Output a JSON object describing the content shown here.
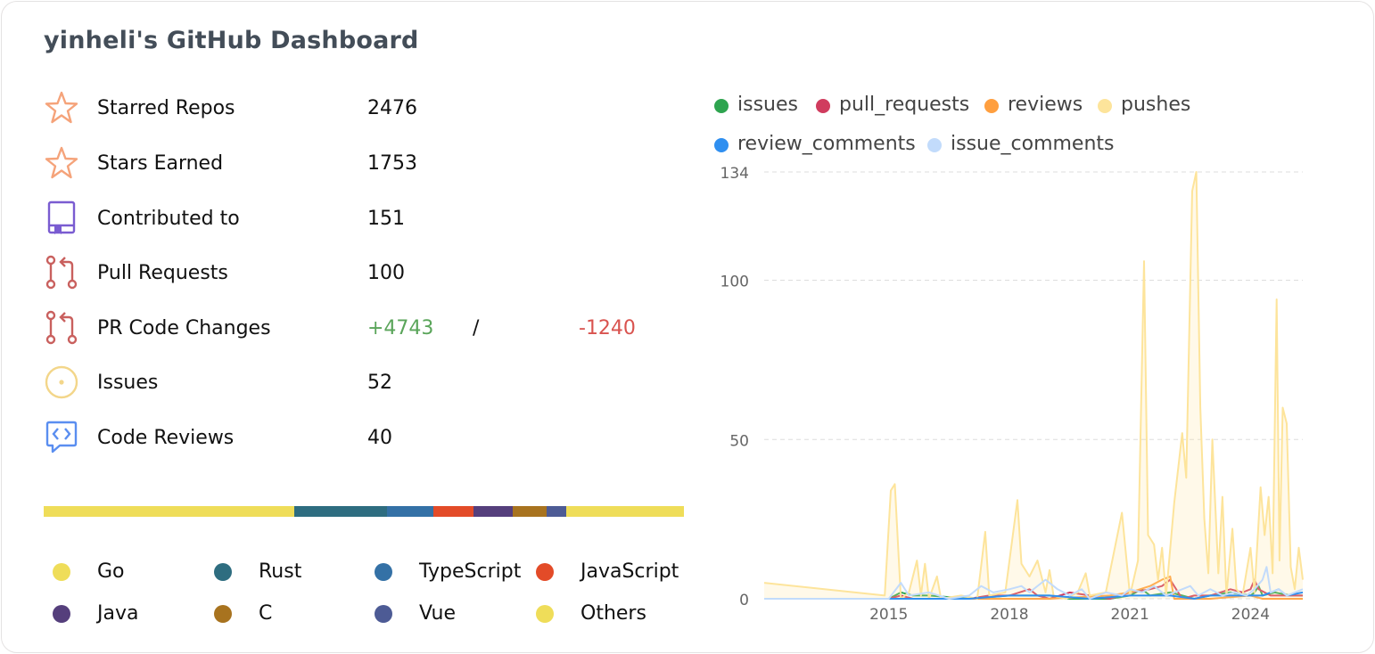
{
  "title": "yinheli's GitHub Dashboard",
  "stats": {
    "starred": {
      "label": "Starred Repos",
      "value": "2476"
    },
    "stars_earned": {
      "label": "Stars Earned",
      "value": "1753"
    },
    "contributed": {
      "label": "Contributed to",
      "value": "151"
    },
    "pull_requests": {
      "label": "Pull Requests",
      "value": "100"
    },
    "pr_changes": {
      "label": "PR Code Changes",
      "additions": "+4743",
      "separator": "/",
      "deletions": "-1240"
    },
    "issues": {
      "label": "Issues",
      "value": "52"
    },
    "code_reviews": {
      "label": "Code Reviews",
      "value": "40"
    }
  },
  "colors": {
    "star": "#f5a37a",
    "repo": "#7a5cd1",
    "pr": "#c9605e",
    "issue": "#f3d68a",
    "review": "#5a8ef0"
  },
  "languages": [
    {
      "name": "Go",
      "color": "#efdd59",
      "share": 39.2
    },
    {
      "name": "Rust",
      "color": "#2e6d80",
      "share": 14.4
    },
    {
      "name": "TypeScript",
      "color": "#3471a6",
      "share": 7.2
    },
    {
      "name": "JavaScript",
      "color": "#e34b28",
      "share": 6.3
    },
    {
      "name": "Java",
      "color": "#553f7c",
      "share": 6.1
    },
    {
      "name": "C",
      "color": "#a8731f",
      "share": 5.3
    },
    {
      "name": "Vue",
      "color": "#4d5b95",
      "share": 3.1
    },
    {
      "name": "Others",
      "color": "#efdd59",
      "share": 18.4
    }
  ],
  "chart_data": {
    "type": "area",
    "title": "",
    "xlabel": "",
    "ylabel": "",
    "ylim": [
      0,
      134
    ],
    "yticks": [
      0,
      50,
      100,
      134
    ],
    "xticks": [
      "2015",
      "2018",
      "2021",
      "2024"
    ],
    "xlim": [
      2011.9,
      2025.3
    ],
    "grid": true,
    "legend_position": "top",
    "series": [
      {
        "name": "issues",
        "color": "#2ea44f",
        "points": [
          [
            2011.9,
            0
          ],
          [
            2015.0,
            0
          ],
          [
            2015.3,
            2
          ],
          [
            2015.6,
            1
          ],
          [
            2016.0,
            1
          ],
          [
            2017.0,
            0
          ],
          [
            2018.0,
            1
          ],
          [
            2018.5,
            1
          ],
          [
            2019.0,
            1
          ],
          [
            2019.5,
            0
          ],
          [
            2020.0,
            0
          ],
          [
            2020.5,
            0
          ],
          [
            2021.0,
            1
          ],
          [
            2021.3,
            3
          ],
          [
            2021.5,
            1
          ],
          [
            2022.0,
            2
          ],
          [
            2022.3,
            1
          ],
          [
            2022.6,
            0
          ],
          [
            2023.0,
            1
          ],
          [
            2023.5,
            2
          ],
          [
            2024.0,
            1
          ],
          [
            2024.1,
            2
          ],
          [
            2024.2,
            4
          ],
          [
            2024.3,
            1
          ],
          [
            2024.6,
            2
          ],
          [
            2025.0,
            1
          ],
          [
            2025.3,
            1
          ]
        ]
      },
      {
        "name": "pull_requests",
        "color": "#d03c5e",
        "points": [
          [
            2011.9,
            0
          ],
          [
            2015.0,
            0
          ],
          [
            2015.3,
            1
          ],
          [
            2015.6,
            0
          ],
          [
            2016.0,
            0
          ],
          [
            2017.0,
            0
          ],
          [
            2017.5,
            1
          ],
          [
            2018.0,
            1
          ],
          [
            2018.5,
            3
          ],
          [
            2018.7,
            1
          ],
          [
            2019.0,
            0
          ],
          [
            2019.5,
            2
          ],
          [
            2020.0,
            1
          ],
          [
            2020.5,
            0
          ],
          [
            2021.0,
            2
          ],
          [
            2021.5,
            3
          ],
          [
            2021.8,
            4
          ],
          [
            2022.0,
            6
          ],
          [
            2022.3,
            0
          ],
          [
            2022.6,
            1
          ],
          [
            2023.0,
            1
          ],
          [
            2023.5,
            3
          ],
          [
            2023.8,
            2
          ],
          [
            2024.0,
            3
          ],
          [
            2024.1,
            6
          ],
          [
            2024.2,
            3
          ],
          [
            2024.5,
            1
          ],
          [
            2024.8,
            1
          ],
          [
            2025.3,
            1
          ]
        ]
      },
      {
        "name": "reviews",
        "color": "#ff9f3f",
        "points": [
          [
            2011.9,
            0
          ],
          [
            2015.0,
            0
          ],
          [
            2017.0,
            0
          ],
          [
            2019.0,
            0
          ],
          [
            2020.5,
            1
          ],
          [
            2021.0,
            2
          ],
          [
            2021.5,
            4
          ],
          [
            2021.8,
            6
          ],
          [
            2022.0,
            7
          ],
          [
            2022.1,
            0
          ],
          [
            2022.5,
            0
          ],
          [
            2023.0,
            0
          ],
          [
            2024.0,
            1
          ],
          [
            2024.3,
            0
          ],
          [
            2025.3,
            0
          ]
        ]
      },
      {
        "name": "pushes",
        "color": "#fde49b",
        "fill": true,
        "points": [
          [
            2011.9,
            5
          ],
          [
            2014.9,
            1
          ],
          [
            2015.05,
            34
          ],
          [
            2015.15,
            36
          ],
          [
            2015.3,
            0
          ],
          [
            2015.5,
            2
          ],
          [
            2015.7,
            12
          ],
          [
            2015.8,
            1
          ],
          [
            2015.9,
            11
          ],
          [
            2016.0,
            0
          ],
          [
            2016.2,
            7
          ],
          [
            2016.3,
            0
          ],
          [
            2016.8,
            1
          ],
          [
            2017.2,
            0
          ],
          [
            2017.4,
            21
          ],
          [
            2017.5,
            1
          ],
          [
            2017.9,
            2
          ],
          [
            2018.2,
            31
          ],
          [
            2018.3,
            11
          ],
          [
            2018.5,
            7
          ],
          [
            2018.7,
            12
          ],
          [
            2018.9,
            2
          ],
          [
            2019.0,
            9
          ],
          [
            2019.1,
            1
          ],
          [
            2019.4,
            0
          ],
          [
            2019.7,
            2
          ],
          [
            2019.9,
            8
          ],
          [
            2020.0,
            1
          ],
          [
            2020.4,
            2
          ],
          [
            2020.8,
            27
          ],
          [
            2021.0,
            1
          ],
          [
            2021.2,
            12
          ],
          [
            2021.35,
            106
          ],
          [
            2021.45,
            20
          ],
          [
            2021.6,
            17
          ],
          [
            2021.7,
            6
          ],
          [
            2021.8,
            16
          ],
          [
            2021.9,
            1
          ],
          [
            2022.1,
            30
          ],
          [
            2022.3,
            52
          ],
          [
            2022.4,
            38
          ],
          [
            2022.55,
            128
          ],
          [
            2022.65,
            134
          ],
          [
            2022.75,
            60
          ],
          [
            2022.85,
            25
          ],
          [
            2022.95,
            8
          ],
          [
            2023.05,
            50
          ],
          [
            2023.2,
            8
          ],
          [
            2023.3,
            32
          ],
          [
            2023.4,
            1
          ],
          [
            2023.55,
            22
          ],
          [
            2023.65,
            3
          ],
          [
            2023.8,
            1
          ],
          [
            2024.0,
            16
          ],
          [
            2024.1,
            2
          ],
          [
            2024.25,
            35
          ],
          [
            2024.35,
            20
          ],
          [
            2024.45,
            32
          ],
          [
            2024.55,
            8
          ],
          [
            2024.65,
            94
          ],
          [
            2024.72,
            12
          ],
          [
            2024.8,
            60
          ],
          [
            2024.9,
            55
          ],
          [
            2025.0,
            10
          ],
          [
            2025.1,
            3
          ],
          [
            2025.2,
            16
          ],
          [
            2025.3,
            6
          ]
        ]
      },
      {
        "name": "review_comments",
        "color": "#2f8ff0",
        "points": [
          [
            2011.9,
            0
          ],
          [
            2015.0,
            0
          ],
          [
            2016.0,
            0
          ],
          [
            2017.0,
            0
          ],
          [
            2018.0,
            1
          ],
          [
            2019.0,
            1
          ],
          [
            2020.0,
            0
          ],
          [
            2021.0,
            1
          ],
          [
            2022.0,
            1
          ],
          [
            2022.6,
            0
          ],
          [
            2023.0,
            1
          ],
          [
            2024.0,
            1
          ],
          [
            2024.3,
            1
          ],
          [
            2024.5,
            2
          ],
          [
            2024.7,
            3
          ],
          [
            2024.9,
            1
          ],
          [
            2025.3,
            2
          ]
        ]
      },
      {
        "name": "issue_comments",
        "color": "#c2dbfb",
        "points": [
          [
            2011.9,
            0
          ],
          [
            2015.0,
            0
          ],
          [
            2015.3,
            5
          ],
          [
            2015.5,
            1
          ],
          [
            2016.0,
            2
          ],
          [
            2016.5,
            0
          ],
          [
            2017.0,
            1
          ],
          [
            2017.3,
            4
          ],
          [
            2017.6,
            2
          ],
          [
            2018.0,
            3
          ],
          [
            2018.3,
            4
          ],
          [
            2018.5,
            2
          ],
          [
            2018.9,
            6
          ],
          [
            2019.2,
            3
          ],
          [
            2019.5,
            1
          ],
          [
            2019.8,
            3
          ],
          [
            2020.0,
            0
          ],
          [
            2020.4,
            2
          ],
          [
            2020.8,
            1
          ],
          [
            2021.0,
            3
          ],
          [
            2021.3,
            2
          ],
          [
            2021.6,
            4
          ],
          [
            2021.9,
            1
          ],
          [
            2022.1,
            2
          ],
          [
            2022.3,
            3
          ],
          [
            2022.5,
            4
          ],
          [
            2022.7,
            1
          ],
          [
            2023.0,
            3
          ],
          [
            2023.3,
            1
          ],
          [
            2023.6,
            2
          ],
          [
            2023.9,
            1
          ],
          [
            2024.1,
            3
          ],
          [
            2024.3,
            6
          ],
          [
            2024.4,
            10
          ],
          [
            2024.5,
            2
          ],
          [
            2024.7,
            3
          ],
          [
            2024.9,
            1
          ],
          [
            2025.1,
            2
          ],
          [
            2025.3,
            3
          ]
        ]
      }
    ]
  }
}
